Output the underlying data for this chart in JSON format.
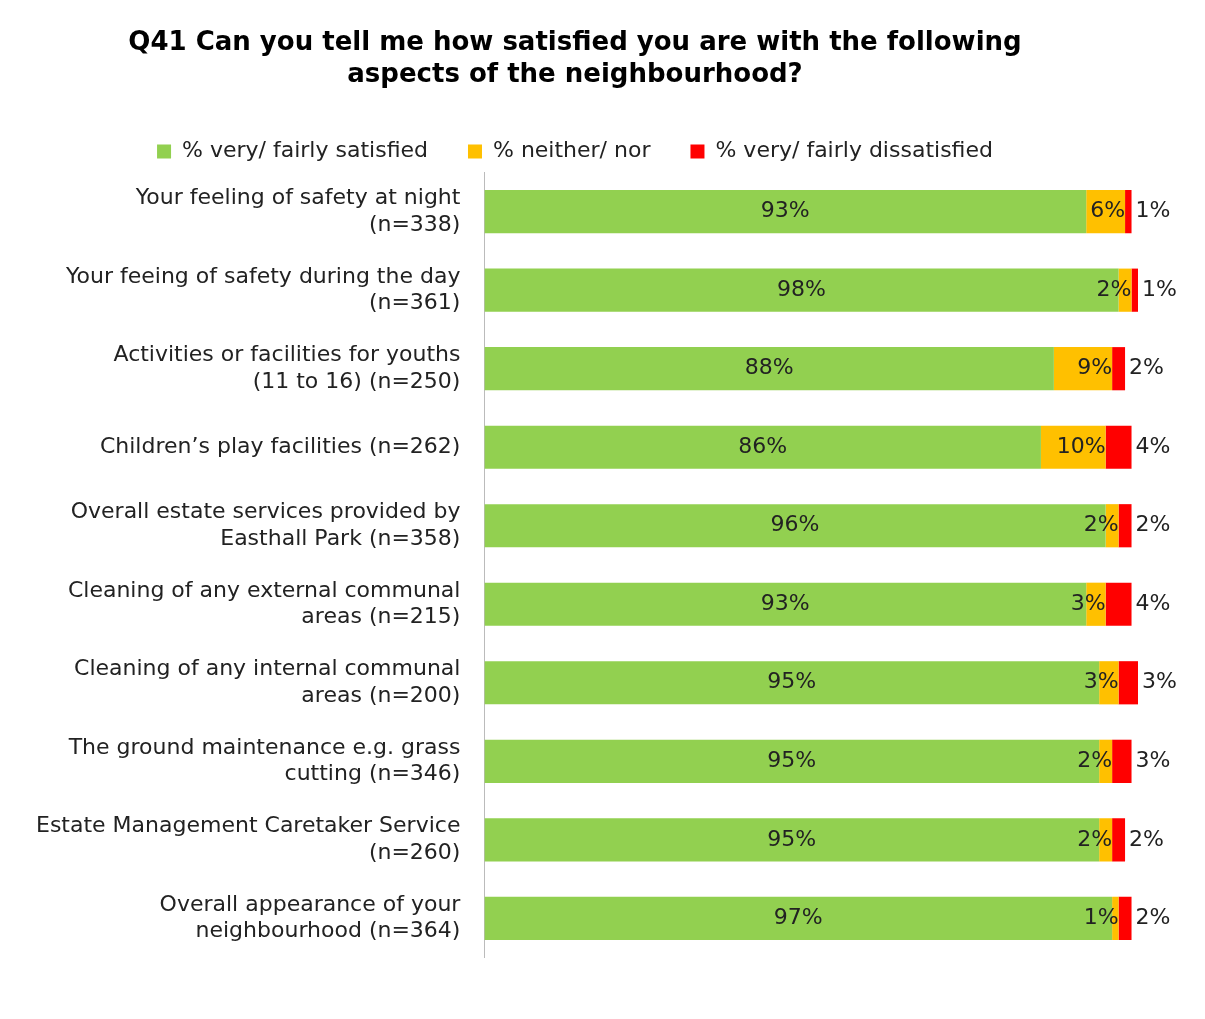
{
  "chart_data": {
    "type": "bar",
    "orientation": "horizontal",
    "stacked": true,
    "title": "Q41 Can you tell me how satisfied you are with the following aspects of the neighbourhood?",
    "categories": [
      "Your feeling of safety at night (n=338)",
      "Your feeing of safety during the day (n=361)",
      "Activities or facilities for youths (11 to 16) (n=250)",
      "Children’s play facilities (n=262)",
      "Overall estate services provided by Easthall Park (n=358)",
      "Cleaning of any external communal areas (n=215)",
      "Cleaning of any internal communal areas (n=200)",
      "The ground maintenance e.g. grass cutting (n=346)",
      "Estate Management Caretaker Service (n=260)",
      "Overall appearance of your neighbourhood (n=364)"
    ],
    "series": [
      {
        "name": "% very/ fairly satisfied",
        "color": "#92d050",
        "values": [
          93,
          98,
          88,
          86,
          96,
          93,
          95,
          95,
          95,
          97
        ],
        "value_labels": [
          "93%",
          "98%",
          "88%",
          "86%",
          "96%",
          "93%",
          "95%",
          "95%",
          "95%",
          "97%"
        ]
      },
      {
        "name": "% neither/ nor",
        "color": "#ffc000",
        "values": [
          6,
          2,
          9,
          10,
          2,
          3,
          3,
          2,
          2,
          1
        ],
        "value_labels": [
          "6%",
          "2%",
          "9%",
          "10%",
          "2%",
          "3%",
          "3%",
          "2%",
          "2%",
          "1%"
        ]
      },
      {
        "name": "% very/ fairly dissatisfied",
        "color": "#ff0000",
        "values": [
          1,
          1,
          2,
          4,
          2,
          4,
          3,
          3,
          2,
          2
        ],
        "value_labels": [
          "1%",
          "1%",
          "2%",
          "4%",
          "2%",
          "4%",
          "3%",
          "3%",
          "2%",
          "2%"
        ]
      }
    ],
    "legend": "top",
    "grid": false,
    "tick_labels": "y"
  }
}
